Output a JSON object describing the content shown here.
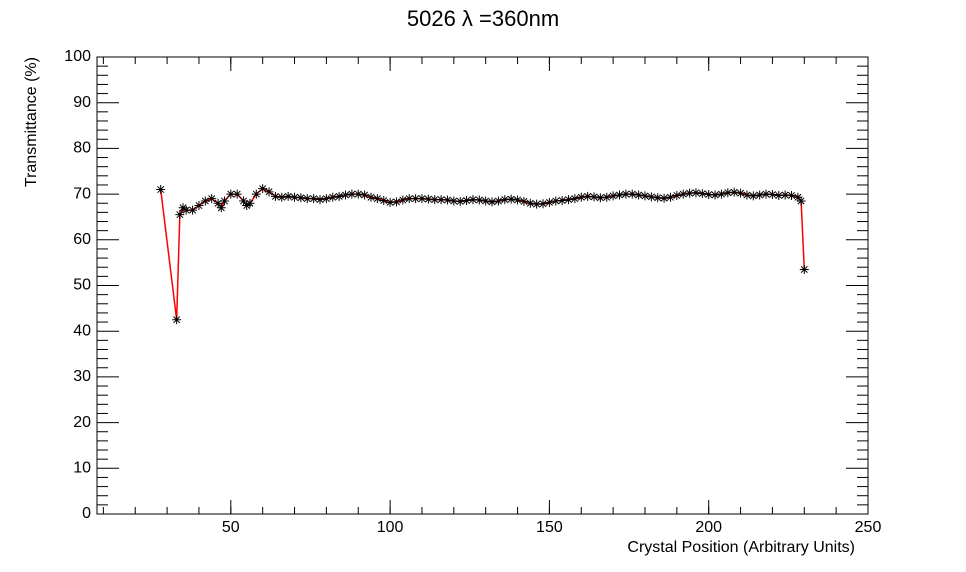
{
  "chart_data": {
    "type": "line",
    "title": "5026 λ =360nm",
    "x_label": "Crystal Position (Arbitrary Units)",
    "y_label": "Transmittance (%)",
    "xlim": [
      8,
      250
    ],
    "xticks": [
      50,
      100,
      150,
      200,
      250
    ],
    "ylim": [
      0,
      100
    ],
    "yticks": [
      0,
      10,
      20,
      30,
      40,
      50,
      60,
      70,
      80,
      90,
      100
    ],
    "series": [
      {
        "color": "#ff0000",
        "marker_color": "#000000",
        "x": [
          28,
          33,
          34,
          35,
          36,
          38,
          40,
          42,
          44,
          46,
          47,
          48,
          50,
          52,
          54,
          55,
          56,
          58,
          60,
          62,
          64,
          66,
          68,
          70,
          72,
          74,
          76,
          78,
          80,
          82,
          84,
          86,
          88,
          90,
          92,
          94,
          96,
          98,
          100,
          102,
          104,
          106,
          108,
          110,
          112,
          114,
          116,
          118,
          120,
          122,
          124,
          126,
          128,
          130,
          132,
          134,
          136,
          138,
          140,
          142,
          144,
          146,
          148,
          150,
          152,
          154,
          156,
          158,
          160,
          162,
          164,
          166,
          168,
          170,
          172,
          174,
          176,
          178,
          180,
          182,
          184,
          186,
          188,
          190,
          192,
          194,
          196,
          198,
          200,
          202,
          204,
          206,
          208,
          210,
          212,
          214,
          216,
          218,
          220,
          222,
          224,
          226,
          228,
          229,
          230
        ],
        "values": [
          71,
          42.5,
          65.5,
          67,
          66.5,
          66.5,
          67.5,
          68.5,
          69,
          68,
          67,
          68.5,
          70,
          70,
          68.5,
          67.5,
          68,
          70,
          71.2,
          70.5,
          69.5,
          69.3,
          69.5,
          69.3,
          69.2,
          69,
          69,
          68.8,
          69,
          69.3,
          69.5,
          69.8,
          70,
          70,
          69.8,
          69.3,
          69,
          68.6,
          68.2,
          68.3,
          68.7,
          69,
          69,
          69,
          68.9,
          68.8,
          68.8,
          68.7,
          68.5,
          68.4,
          68.6,
          68.8,
          68.7,
          68.5,
          68.3,
          68.5,
          68.8,
          68.9,
          68.7,
          68.4,
          68,
          67.8,
          67.9,
          68.2,
          68.5,
          68.6,
          68.8,
          69,
          69.3,
          69.5,
          69.4,
          69.2,
          69.3,
          69.6,
          69.8,
          70,
          70,
          69.8,
          69.6,
          69.4,
          69.2,
          69.1,
          69.3,
          69.7,
          70,
          70.2,
          70.3,
          70.1,
          69.9,
          69.8,
          70,
          70.3,
          70.4,
          70.2,
          69.8,
          69.6,
          69.8,
          70,
          69.9,
          69.7,
          69.8,
          69.7,
          69.3,
          68.5,
          53.5
        ]
      }
    ]
  }
}
